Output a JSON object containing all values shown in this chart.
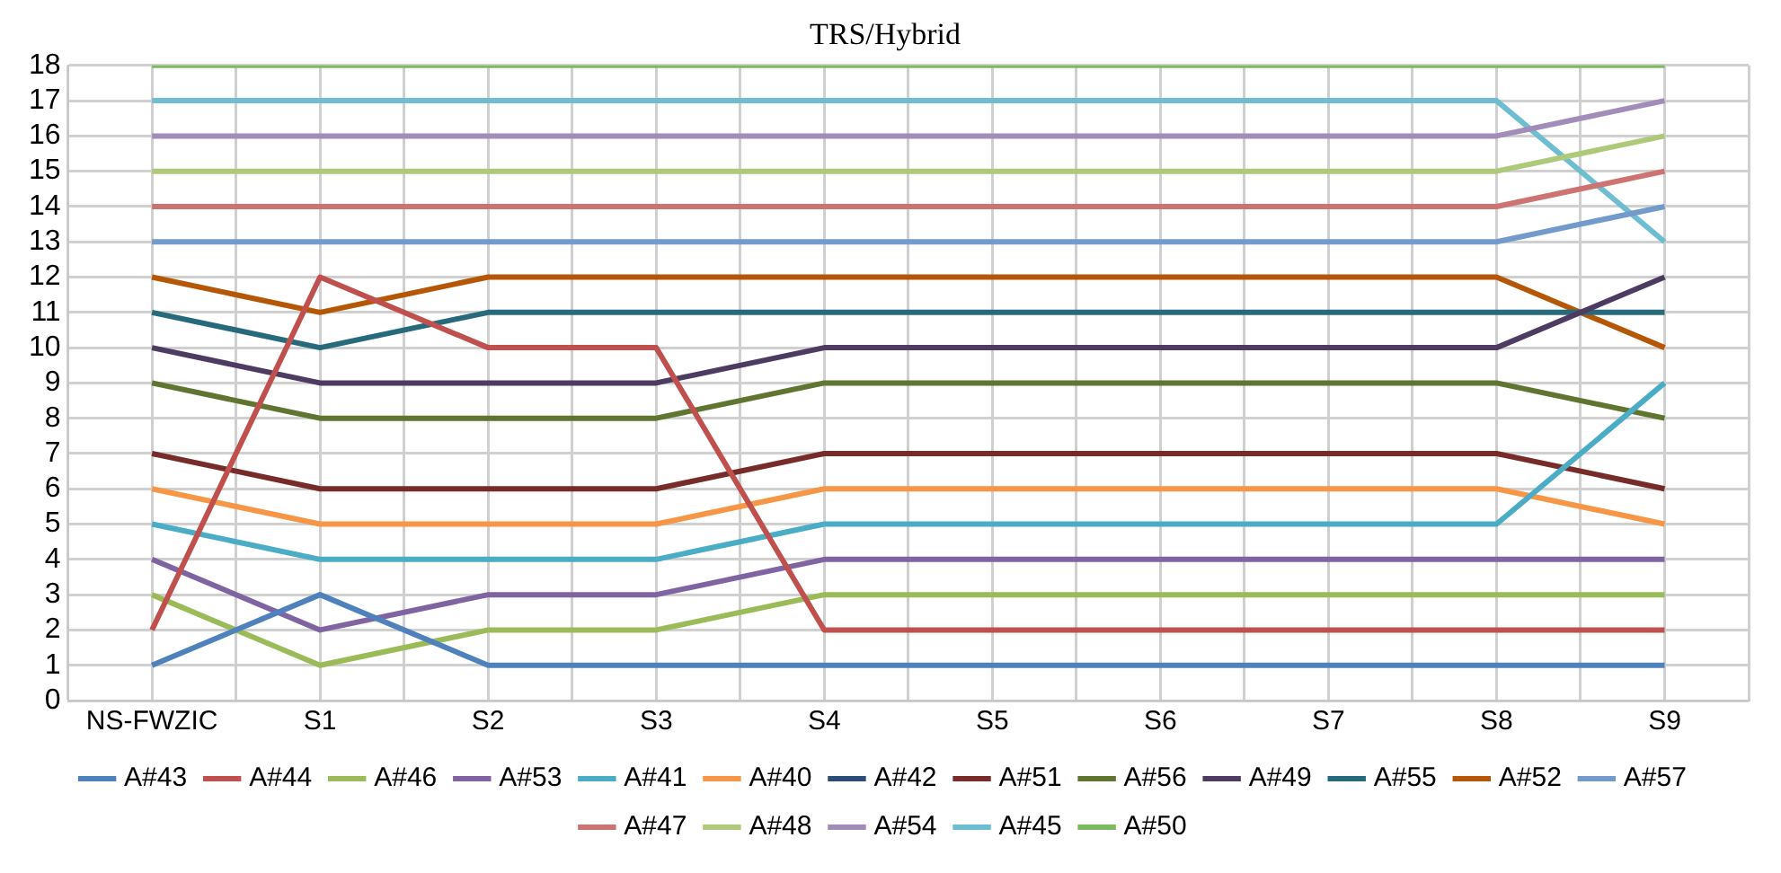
{
  "chart_data": {
    "type": "line",
    "title": "TRS/Hybrid",
    "categories": [
      "NS-FWZIC",
      "S1",
      "S2",
      "S3",
      "S4",
      "S5",
      "S6",
      "S7",
      "S8",
      "S9"
    ],
    "ylim": [
      0,
      18
    ],
    "yticks": [
      0,
      1,
      2,
      3,
      4,
      5,
      6,
      7,
      8,
      9,
      10,
      11,
      12,
      13,
      14,
      15,
      16,
      17,
      18
    ],
    "grid": true,
    "legend": "bottom",
    "marker": "none",
    "line_style": "solid",
    "series": [
      {
        "name": "A#43",
        "color": "#4f81bd",
        "values": [
          1,
          3,
          1,
          1,
          1,
          1,
          1,
          1,
          1,
          1
        ]
      },
      {
        "name": "A#44",
        "color": "#c0504d",
        "values": [
          2,
          12,
          10,
          10,
          2,
          2,
          2,
          2,
          2,
          2
        ]
      },
      {
        "name": "A#46",
        "color": "#9bbb59",
        "values": [
          3,
          1,
          2,
          2,
          3,
          3,
          3,
          3,
          3,
          3
        ]
      },
      {
        "name": "A#53",
        "color": "#8064a2",
        "values": [
          4,
          2,
          3,
          3,
          4,
          4,
          4,
          4,
          4,
          4
        ]
      },
      {
        "name": "A#41",
        "color": "#4bacc6",
        "values": [
          5,
          4,
          4,
          4,
          5,
          5,
          5,
          5,
          5,
          9
        ]
      },
      {
        "name": "A#40",
        "color": "#f79646",
        "values": [
          6,
          5,
          5,
          5,
          6,
          6,
          6,
          6,
          6,
          5
        ]
      },
      {
        "name": "A#42",
        "color": "#2c4d75",
        "values": [
          null,
          null,
          null,
          null,
          null,
          null,
          null,
          null,
          null,
          null
        ]
      },
      {
        "name": "A#51",
        "color": "#772c2a",
        "values": [
          7,
          6,
          6,
          6,
          7,
          7,
          7,
          7,
          7,
          6
        ]
      },
      {
        "name": "A#56",
        "color": "#5f7530",
        "values": [
          9,
          8,
          8,
          8,
          9,
          9,
          9,
          9,
          9,
          8
        ]
      },
      {
        "name": "A#49",
        "color": "#4d3b62",
        "values": [
          10,
          9,
          9,
          9,
          10,
          10,
          10,
          10,
          10,
          12
        ]
      },
      {
        "name": "A#55",
        "color": "#276a7c",
        "values": [
          11,
          10,
          11,
          11,
          11,
          11,
          11,
          11,
          11,
          11
        ]
      },
      {
        "name": "A#52",
        "color": "#b65708",
        "values": [
          12,
          11,
          12,
          12,
          12,
          12,
          12,
          12,
          12,
          10
        ]
      },
      {
        "name": "A#57",
        "color": "#729aca",
        "values": [
          13,
          13,
          13,
          13,
          13,
          13,
          13,
          13,
          13,
          14
        ]
      },
      {
        "name": "A#47",
        "color": "#cd7371",
        "values": [
          14,
          14,
          14,
          14,
          14,
          14,
          14,
          14,
          14,
          15
        ]
      },
      {
        "name": "A#48",
        "color": "#afc97a",
        "values": [
          15,
          15,
          15,
          15,
          15,
          15,
          15,
          15,
          15,
          16
        ]
      },
      {
        "name": "A#54",
        "color": "#a18cba",
        "values": [
          16,
          16,
          16,
          16,
          16,
          16,
          16,
          16,
          16,
          17
        ]
      },
      {
        "name": "A#45",
        "color": "#6fbdd1",
        "values": [
          17,
          17,
          17,
          17,
          17,
          17,
          17,
          17,
          17,
          13
        ]
      },
      {
        "name": "A#50",
        "color": "#7cba5f",
        "values": [
          18,
          18,
          18,
          18,
          18,
          18,
          18,
          18,
          18,
          18
        ]
      }
    ]
  }
}
